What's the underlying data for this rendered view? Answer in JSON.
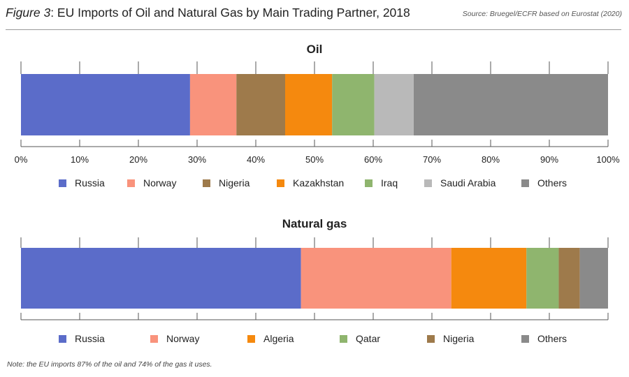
{
  "header": {
    "figure_label": "Figure 3",
    "title_rest": ": EU Imports of Oil and Natural Gas by Main Trading Partner, 2018",
    "source": "Source: Bruegel/ECFR based on Eurostat (2020)"
  },
  "note": "Note: the EU imports 87% of the oil and 74% of the gas it uses.",
  "colors": {
    "Russia": "#5b6cc9",
    "Norway": "#f9937c",
    "Nigeria": "#9e7a4b",
    "Kazakhstan": "#f5890e",
    "Algeria": "#f5890e",
    "Iraq": "#8fb56e",
    "Qatar": "#8fb56e",
    "Saudi Arabia": "#b9b9b9",
    "Others": "#8a8a8a"
  },
  "chart_data": [
    {
      "type": "bar",
      "orientation": "horizontal-stacked",
      "title": "Oil",
      "xlim": [
        0,
        100
      ],
      "ticks": [
        "0%",
        "10%",
        "20%",
        "30%",
        "40%",
        "50%",
        "60%",
        "70%",
        "80%",
        "90%",
        "100%"
      ],
      "legend_position": "bottom",
      "series": [
        {
          "name": "Russia",
          "values": [
            28.8
          ]
        },
        {
          "name": "Norway",
          "values": [
            7.9
          ]
        },
        {
          "name": "Nigeria",
          "values": [
            8.3
          ]
        },
        {
          "name": "Kazakhstan",
          "values": [
            8.0
          ]
        },
        {
          "name": "Iraq",
          "values": [
            7.2
          ]
        },
        {
          "name": "Saudi Arabia",
          "values": [
            6.7
          ]
        },
        {
          "name": "Others",
          "values": [
            33.1
          ]
        }
      ]
    },
    {
      "type": "bar",
      "orientation": "horizontal-stacked",
      "title": "Natural gas",
      "xlim": [
        0,
        100
      ],
      "legend_position": "bottom",
      "series": [
        {
          "name": "Russia",
          "values": [
            47.7
          ]
        },
        {
          "name": "Norway",
          "values": [
            25.6
          ]
        },
        {
          "name": "Algeria",
          "values": [
            12.8
          ]
        },
        {
          "name": "Qatar",
          "values": [
            5.5
          ]
        },
        {
          "name": "Nigeria",
          "values": [
            3.6
          ]
        },
        {
          "name": "Others",
          "values": [
            4.8
          ]
        }
      ]
    }
  ]
}
